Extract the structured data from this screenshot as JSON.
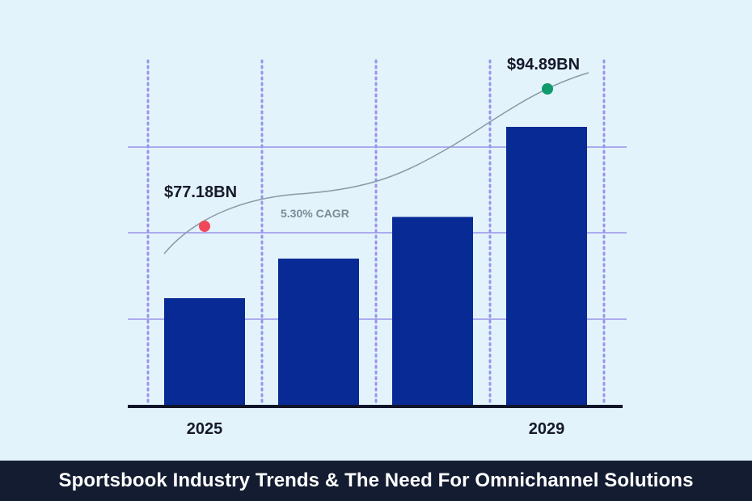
{
  "chart_data": {
    "type": "bar",
    "categories": [
      "2025",
      "",
      "",
      "2029"
    ],
    "values": [
      77.18,
      81.27,
      85.58,
      94.89
    ],
    "value_unit": "$BN",
    "bar_color": "#082a94",
    "xtick_labels": [
      "2025",
      "",
      "",
      "2029"
    ],
    "annotations": {
      "start_value_label": "$77.18BN",
      "end_value_label": "$94.89BN",
      "cagr_label": "5.30% CAGR",
      "start_marker_color": "#f0485a",
      "end_marker_color": "#0e9a6b"
    },
    "grid": true,
    "grid_color": "#9a93ea",
    "trend_line_color": "#8a9aa6"
  },
  "footer": {
    "title": "Sportsbook Industry Trends & The Need For Omnichannel Solutions"
  }
}
